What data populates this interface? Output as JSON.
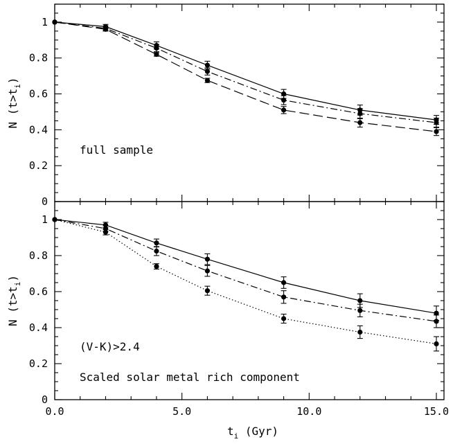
{
  "chart_data": [
    {
      "type": "line",
      "panel": "top",
      "annotations": [
        "full sample"
      ],
      "ylabel": "N (t>t_i)",
      "xlabel": "",
      "xlim": [
        0,
        15.3
      ],
      "ylim": [
        0,
        1.1
      ],
      "x": [
        0,
        2,
        4,
        6,
        9,
        12,
        15
      ],
      "series": [
        {
          "style": "solid",
          "values": [
            1.0,
            0.975,
            0.87,
            0.76,
            0.6,
            0.51,
            0.455
          ],
          "errors": [
            0,
            0.012,
            0.02,
            0.022,
            0.025,
            0.028,
            0.025
          ]
        },
        {
          "style": "dashdot",
          "values": [
            1.0,
            0.965,
            0.855,
            0.725,
            0.565,
            0.49,
            0.44
          ],
          "errors": [
            0,
            0.012,
            0.02,
            0.02,
            0.025,
            0.028,
            0.025
          ]
        },
        {
          "style": "longdash",
          "values": [
            1.0,
            0.96,
            0.82,
            0.675,
            0.51,
            0.44,
            0.39
          ],
          "errors": [
            0,
            0.01,
            0.01,
            0.012,
            0.02,
            0.025,
            0.022
          ]
        }
      ]
    },
    {
      "type": "line",
      "panel": "bottom",
      "annotations": [
        "(V-K)>2.4",
        "Scaled solar metal rich component"
      ],
      "ylabel": "N (t>t_i)",
      "xlabel": "t_i (Gyr)",
      "xlim": [
        0,
        15.3
      ],
      "ylim": [
        0,
        1.1
      ],
      "x": [
        0,
        2,
        4,
        6,
        9,
        12,
        15
      ],
      "series": [
        {
          "style": "solid",
          "values": [
            1.0,
            0.97,
            0.87,
            0.78,
            0.65,
            0.55,
            0.48
          ],
          "errors": [
            0,
            0.015,
            0.022,
            0.03,
            0.032,
            0.038,
            0.04
          ]
        },
        {
          "style": "dashdot",
          "values": [
            1.0,
            0.95,
            0.825,
            0.715,
            0.57,
            0.495,
            0.435
          ],
          "errors": [
            0,
            0.015,
            0.025,
            0.03,
            0.035,
            0.035,
            0.035
          ]
        },
        {
          "style": "dotted",
          "values": [
            1.0,
            0.93,
            0.74,
            0.605,
            0.45,
            0.375,
            0.31
          ],
          "errors": [
            0,
            0.015,
            0.015,
            0.025,
            0.025,
            0.035,
            0.04
          ]
        }
      ]
    }
  ],
  "axes": {
    "x_ticks": [
      "0.0",
      "5.0",
      "10.0",
      "15.0"
    ],
    "y_ticks": [
      "0",
      "0.2",
      "0.4",
      "0.6",
      "0.8",
      "1"
    ],
    "xlabel_main": "t",
    "xlabel_sub": "i",
    "xlabel_rest": " (Gyr)",
    "ylabel_main": "N (t>t",
    "ylabel_sub": "i",
    "ylabel_rest": ")"
  }
}
